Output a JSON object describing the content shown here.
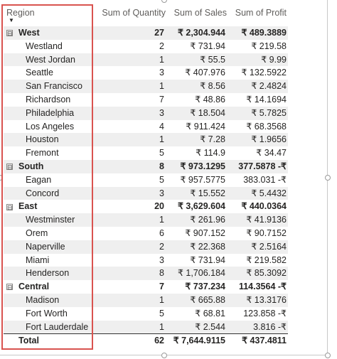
{
  "headers": {
    "region": "Region",
    "quantity": "Sum of Quantity",
    "sales": "Sum of Sales",
    "profit": "Sum of Profit"
  },
  "rows": [
    {
      "type": "group",
      "toggle": "⊟",
      "name": "West",
      "quantity": "27",
      "sales": "₹ 2,304.944",
      "profit": "₹ 489.3889"
    },
    {
      "type": "city",
      "name": "Westland",
      "quantity": "2",
      "sales": "₹ 731.94",
      "profit": "₹ 219.58"
    },
    {
      "type": "city",
      "name": "West Jordan",
      "quantity": "1",
      "sales": "₹ 55.5",
      "profit": "₹ 9.99"
    },
    {
      "type": "city",
      "name": "Seattle",
      "quantity": "3",
      "sales": "₹ 407.976",
      "profit": "₹ 132.5922"
    },
    {
      "type": "city",
      "name": "San Francisco",
      "quantity": "1",
      "sales": "₹ 8.56",
      "profit": "₹ 2.4824"
    },
    {
      "type": "city",
      "name": "Richardson",
      "quantity": "7",
      "sales": "₹ 48.86",
      "profit": "₹ 14.1694"
    },
    {
      "type": "city",
      "name": "Philadelphia",
      "quantity": "3",
      "sales": "₹ 18.504",
      "profit": "₹ 5.7825"
    },
    {
      "type": "city",
      "name": "Los Angeles",
      "quantity": "4",
      "sales": "₹ 911.424",
      "profit": "₹ 68.3568"
    },
    {
      "type": "city",
      "name": "Houston",
      "quantity": "1",
      "sales": "₹ 7.28",
      "profit": "₹ 1.9656"
    },
    {
      "type": "city",
      "name": "Fremont",
      "quantity": "5",
      "sales": "₹ 114.9",
      "profit": "₹ 34.47"
    },
    {
      "type": "group",
      "toggle": "⊟",
      "name": "South",
      "quantity": "8",
      "sales": "₹ 973.1295",
      "profit": "377.5878 -₹"
    },
    {
      "type": "city",
      "name": "Eagan",
      "quantity": "5",
      "sales": "₹ 957.5775",
      "profit": "383.031 -₹"
    },
    {
      "type": "city",
      "name": "Concord",
      "quantity": "3",
      "sales": "₹ 15.552",
      "profit": "₹ 5.4432"
    },
    {
      "type": "group",
      "toggle": "⊟",
      "name": "East",
      "quantity": "20",
      "sales": "₹ 3,629.604",
      "profit": "₹ 440.0364"
    },
    {
      "type": "city",
      "name": "Westminster",
      "quantity": "1",
      "sales": "₹ 261.96",
      "profit": "₹ 41.9136"
    },
    {
      "type": "city",
      "name": "Orem",
      "quantity": "6",
      "sales": "₹ 907.152",
      "profit": "₹ 90.7152"
    },
    {
      "type": "city",
      "name": "Naperville",
      "quantity": "2",
      "sales": "₹ 22.368",
      "profit": "₹ 2.5164"
    },
    {
      "type": "city",
      "name": "Miami",
      "quantity": "3",
      "sales": "₹ 731.94",
      "profit": "₹ 219.582"
    },
    {
      "type": "city",
      "name": "Henderson",
      "quantity": "8",
      "sales": "₹ 1,706.184",
      "profit": "₹ 85.3092"
    },
    {
      "type": "group",
      "toggle": "⊟",
      "name": "Central",
      "quantity": "7",
      "sales": "₹ 737.234",
      "profit": "114.3564 -₹"
    },
    {
      "type": "city",
      "name": "Madison",
      "quantity": "1",
      "sales": "₹ 665.88",
      "profit": "₹ 13.3176"
    },
    {
      "type": "city",
      "name": "Fort Worth",
      "quantity": "5",
      "sales": "₹ 68.81",
      "profit": "123.858 -₹"
    },
    {
      "type": "city",
      "name": "Fort Lauderdale",
      "quantity": "1",
      "sales": "₹ 2.544",
      "profit": "3.816 -₹"
    },
    {
      "type": "total",
      "name": "Total",
      "quantity": "62",
      "sales": "₹ 7,644.9115",
      "profit": "₹ 437.4811"
    }
  ],
  "sort_icon": "sort-descending-icon",
  "highlight_color": "#d9534f",
  "stripe_color": "#efefef"
}
